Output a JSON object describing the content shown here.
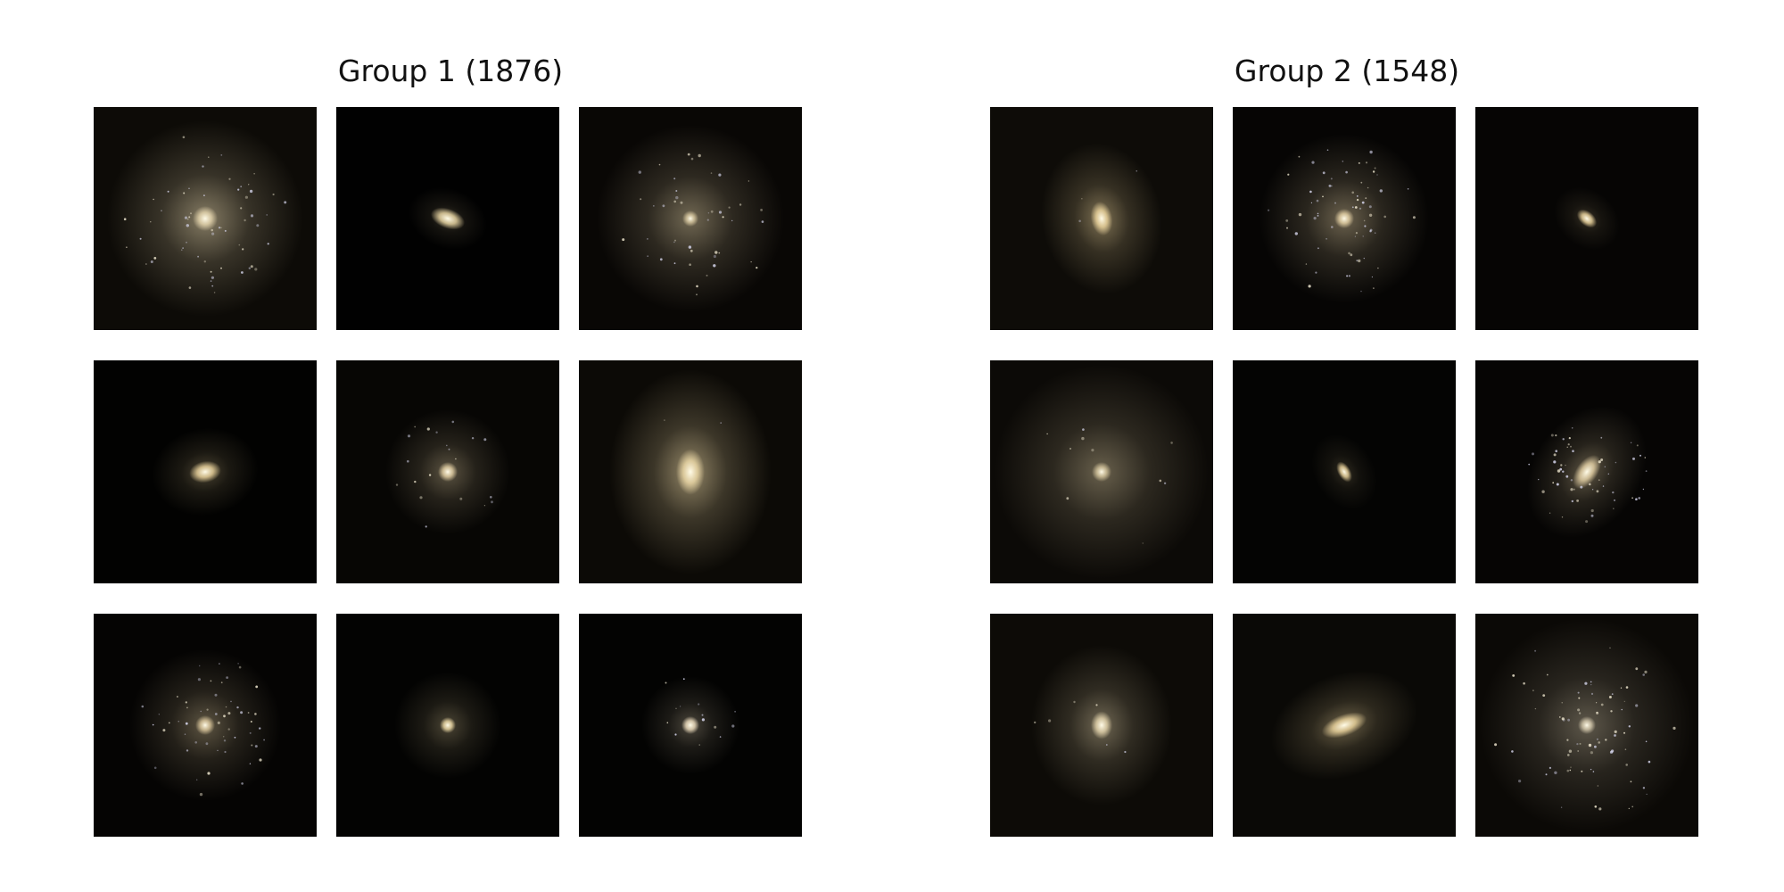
{
  "groups": [
    {
      "title": "Group 1 (1876)",
      "tiles": [
        {
          "desc": "galaxy-face-on-spiral",
          "bg": "#0d0b07",
          "halo": 0.55,
          "halo_size": 110,
          "core": 14,
          "knots": 60,
          "elong": 1.0,
          "angle": 0,
          "tint": "#e8d8b0"
        },
        {
          "desc": "galaxy-compact-elongated",
          "bg": "#010101",
          "halo": 0.22,
          "halo_size": 45,
          "core": 11,
          "knots": 0,
          "elong": 1.8,
          "angle": 20,
          "tint": "#f0dca8"
        },
        {
          "desc": "galaxy-diffuse-disk",
          "bg": "#090705",
          "halo": 0.5,
          "halo_size": 105,
          "core": 9,
          "knots": 45,
          "elong": 1.0,
          "angle": 0,
          "tint": "#d8c8a0"
        },
        {
          "desc": "galaxy-elliptical-small",
          "bg": "#020201",
          "halo": 0.3,
          "halo_size": 60,
          "core": 12,
          "knots": 0,
          "elong": 1.5,
          "angle": -10,
          "tint": "#f0d8a0"
        },
        {
          "desc": "galaxy-compact-disk",
          "bg": "#070604",
          "halo": 0.38,
          "halo_size": 70,
          "core": 11,
          "knots": 20,
          "elong": 1.0,
          "angle": 0,
          "tint": "#e8d4a8"
        },
        {
          "desc": "galaxy-large-elliptical",
          "bg": "#0c0a06",
          "halo": 0.6,
          "halo_size": 115,
          "core": 16,
          "knots": 2,
          "elong": 1.6,
          "angle": 90,
          "tint": "#f0dcaa"
        },
        {
          "desc": "galaxy-spiral-clumpy",
          "bg": "#050403",
          "halo": 0.4,
          "halo_size": 85,
          "core": 11,
          "knots": 55,
          "elong": 1.0,
          "angle": 0,
          "tint": "#e0cca0"
        },
        {
          "desc": "galaxy-compact-round",
          "bg": "#030302",
          "halo": 0.3,
          "halo_size": 60,
          "core": 9,
          "knots": 0,
          "elong": 1.0,
          "angle": 0,
          "tint": "#f0dca8"
        },
        {
          "desc": "galaxy-merger-tidal",
          "bg": "#030302",
          "halo": 0.3,
          "halo_size": 55,
          "core": 10,
          "knots": 14,
          "elong": 1.0,
          "angle": 0,
          "tint": "#f0e0c0"
        }
      ]
    },
    {
      "title": "Group 2 (1548)",
      "tiles": [
        {
          "desc": "galaxy-double-core",
          "bg": "#0e0c08",
          "halo": 0.5,
          "halo_size": 85,
          "core": 12,
          "knots": 3,
          "elong": 1.6,
          "angle": 80,
          "tint": "#f0d8a0"
        },
        {
          "desc": "galaxy-star-forming-disk",
          "bg": "#060504",
          "halo": 0.45,
          "halo_size": 95,
          "core": 11,
          "knots": 70,
          "elong": 1.0,
          "angle": 0,
          "tint": "#e8d4a8"
        },
        {
          "desc": "galaxy-compact-tiny",
          "bg": "#060504",
          "halo": 0.2,
          "halo_size": 40,
          "core": 8,
          "knots": 0,
          "elong": 1.6,
          "angle": 40,
          "tint": "#f0d8a0"
        },
        {
          "desc": "galaxy-extended-halo",
          "bg": "#0c0a07",
          "halo": 0.45,
          "halo_size": 120,
          "core": 11,
          "knots": 10,
          "elong": 1.0,
          "angle": 0,
          "tint": "#d8c8a0"
        },
        {
          "desc": "galaxy-pair-small",
          "bg": "#040403",
          "halo": 0.18,
          "halo_size": 45,
          "core": 7,
          "knots": 0,
          "elong": 1.8,
          "angle": 60,
          "tint": "#f0d8a0"
        },
        {
          "desc": "galaxy-barred-clumpy",
          "bg": "#060504",
          "halo": 0.4,
          "halo_size": 80,
          "core": 12,
          "knots": 60,
          "elong": 1.8,
          "angle": -55,
          "tint": "#e8d4a8"
        },
        {
          "desc": "galaxy-ring-core",
          "bg": "#0d0b07",
          "halo": 0.45,
          "halo_size": 90,
          "core": 12,
          "knots": 6,
          "elong": 1.3,
          "angle": 90,
          "tint": "#e8d8b0"
        },
        {
          "desc": "galaxy-edge-on-elongated",
          "bg": "#0a0906",
          "halo": 0.42,
          "halo_size": 85,
          "core": 12,
          "knots": 0,
          "elong": 2.2,
          "angle": -20,
          "tint": "#f0d8a0"
        },
        {
          "desc": "galaxy-diffuse-clumpy",
          "bg": "#0b0906",
          "halo": 0.4,
          "halo_size": 120,
          "core": 10,
          "knots": 80,
          "elong": 1.0,
          "angle": 0,
          "tint": "#d8ccb0"
        }
      ]
    }
  ]
}
